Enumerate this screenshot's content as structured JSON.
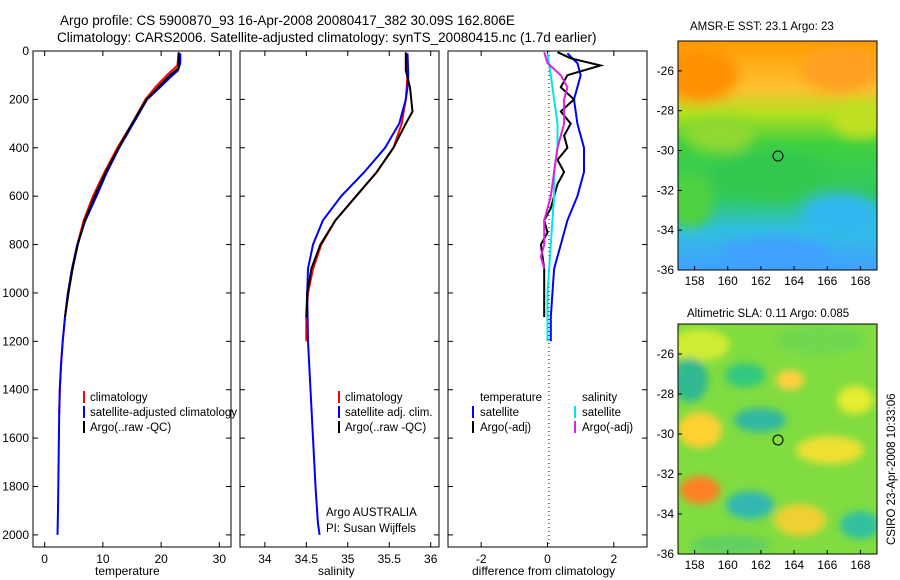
{
  "header": {
    "line1": "Argo profile: CS 5900870_93 16-Apr-2008 20080417_382 30.09S 162.806E",
    "line2": "Climatology: CARS2006. Satellite-adjusted climatology: synTS_20080415.nc (1.7d earlier)"
  },
  "footer_note": "CSIRO 23-Apr-2008 10:33:06",
  "chart_data": [
    {
      "type": "line",
      "xlabel": "temperature",
      "xlim": [
        -2,
        32
      ],
      "ylim": [
        0,
        2050
      ],
      "y_reversed": true,
      "xticks": [
        "0",
        "10",
        "20",
        "30"
      ],
      "yticks": [
        "0",
        "200",
        "400",
        "600",
        "800",
        "1000",
        "1200",
        "1400",
        "1600",
        "1800",
        "2000"
      ],
      "legend": [
        "climatology",
        "satellite-adjusted climatology",
        "Argo(..raw -QC)"
      ],
      "series": [
        {
          "name": "climatology",
          "color": "#ff0000",
          "x": [
            23.0,
            22.8,
            21.0,
            19.0,
            17.3,
            15.0,
            12.5,
            10.3,
            8.3,
            6.7,
            5.6,
            4.7,
            4.0,
            3.5,
            3.1,
            2.8,
            2.6,
            2.5
          ],
          "y": [
            10,
            60,
            100,
            150,
            200,
            300,
            400,
            500,
            600,
            700,
            800,
            900,
            1000,
            1100,
            1200,
            1300,
            1400,
            1500
          ]
        },
        {
          "name": "satellite-adjusted climatology",
          "color": "#0000ff",
          "x": [
            23.3,
            23.3,
            22.9,
            21.5,
            19.8,
            17.6,
            15.2,
            12.8,
            10.7,
            8.9,
            7.0,
            5.6,
            4.7,
            4.0,
            3.5,
            3.1,
            2.8,
            2.6,
            2.5,
            2.4,
            2.3,
            2.2
          ],
          "y": [
            10,
            50,
            80,
            110,
            150,
            200,
            300,
            400,
            500,
            600,
            700,
            800,
            900,
            1000,
            1100,
            1200,
            1300,
            1400,
            1500,
            1700,
            1900,
            2000
          ]
        },
        {
          "name": "Argo(..raw -QC)",
          "color": "#000000",
          "x": [
            23.0,
            23.0,
            21.5,
            19.5,
            17.5,
            15.0,
            12.7,
            10.5,
            8.6,
            6.9,
            5.7,
            4.8,
            4.1,
            3.5
          ],
          "y": [
            5,
            70,
            100,
            150,
            200,
            300,
            400,
            500,
            600,
            700,
            800,
            900,
            1000,
            1100
          ]
        }
      ]
    },
    {
      "type": "line",
      "xlabel": "salinity",
      "xlim": [
        33.7,
        36.1
      ],
      "ylim": [
        0,
        2050
      ],
      "y_reversed": true,
      "xticks": [
        "34",
        "34.5",
        "35",
        "35.5",
        "36"
      ],
      "legend": [
        "climatology",
        "satellite adj. clim.",
        "Argo(..raw -QC)"
      ],
      "annotation": [
        "Argo AUSTRALIA",
        "PI: Susan Wijffels"
      ],
      "series": [
        {
          "name": "climatology",
          "color": "#ff0000",
          "x": [
            35.7,
            35.72,
            35.7,
            35.65,
            35.55,
            35.35,
            35.1,
            34.85,
            34.68,
            34.58,
            34.52,
            34.5,
            34.5
          ],
          "y": [
            10,
            100,
            200,
            300,
            400,
            500,
            600,
            700,
            800,
            900,
            1000,
            1100,
            1200
          ]
        },
        {
          "name": "satellite adj. clim.",
          "color": "#0000ff",
          "x": [
            35.72,
            35.73,
            35.72,
            35.7,
            35.62,
            35.45,
            35.2,
            34.92,
            34.7,
            34.58,
            34.52,
            34.51,
            34.52,
            34.55,
            34.58,
            34.61,
            34.64,
            34.66
          ],
          "y": [
            10,
            100,
            150,
            200,
            300,
            400,
            500,
            600,
            700,
            800,
            900,
            1000,
            1200,
            1400,
            1600,
            1800,
            1950,
            2000
          ]
        },
        {
          "name": "Argo(..raw -QC)",
          "color": "#000000",
          "x": [
            35.7,
            35.7,
            35.75,
            35.78,
            35.7,
            35.55,
            35.35,
            35.1,
            34.85,
            34.67,
            34.56,
            34.51,
            34.5
          ],
          "y": [
            5,
            80,
            150,
            250,
            300,
            400,
            500,
            600,
            700,
            800,
            900,
            1000,
            1100
          ]
        }
      ]
    },
    {
      "type": "line",
      "xlabel": "difference from climatology",
      "xlim": [
        -3,
        3
      ],
      "ylim": [
        0,
        2050
      ],
      "y_reversed": true,
      "xticks": [
        "-2",
        "0",
        "2"
      ],
      "legend": [
        "temperature",
        "satellite",
        "Argo(-adj)",
        "salinity",
        "satellite",
        "Argo(-adj)"
      ],
      "series": [
        {
          "name": "temperature satellite",
          "color": "#0000ff",
          "x": [
            0.6,
            0.9,
            1.0,
            0.8,
            0.9,
            1.1,
            1.1,
            0.9,
            0.6,
            0.4,
            0.2,
            0.1,
            0.1
          ],
          "y": [
            10,
            50,
            100,
            200,
            300,
            400,
            500,
            600,
            700,
            800,
            900,
            1100,
            1200
          ]
        },
        {
          "name": "temperature Argo(-adj)",
          "color": "#000000",
          "x": [
            0.3,
            0.7,
            1.6,
            0.6,
            0.4,
            0.8,
            0.4,
            0.7,
            0.5,
            0.6,
            0.3,
            0.5,
            0.3,
            0.2,
            0.1,
            -0.1,
            0.0,
            -0.2,
            -0.1,
            -0.1,
            -0.1
          ],
          "y": [
            5,
            30,
            60,
            100,
            150,
            200,
            250,
            300,
            350,
            400,
            450,
            500,
            550,
            600,
            650,
            700,
            750,
            800,
            900,
            1000,
            1100
          ]
        },
        {
          "name": "salinity satellite",
          "color": "#00e5e5",
          "x": [
            0.0,
            0.1,
            0.2,
            0.3,
            0.3,
            0.2,
            0.2,
            0.1,
            0.0,
            0.0
          ],
          "y": [
            10,
            100,
            200,
            300,
            400,
            500,
            600,
            800,
            1000,
            1200
          ]
        },
        {
          "name": "salinity Argo(-adj)",
          "color": "#e020e0",
          "x": [
            -0.1,
            0.0,
            0.4,
            0.6,
            0.5,
            0.5,
            0.3,
            0.2,
            0.1,
            -0.1,
            -0.1,
            -0.2,
            -0.1
          ],
          "y": [
            5,
            50,
            100,
            150,
            200,
            300,
            400,
            500,
            600,
            700,
            800,
            850,
            900
          ]
        }
      ]
    },
    {
      "type": "heatmap",
      "title": "AMSR-E SST: 23.1  Argo: 23",
      "xlim": [
        157,
        169
      ],
      "ylim": [
        -36,
        -24.5
      ],
      "xticks": [
        "158",
        "160",
        "162",
        "164",
        "166",
        "168"
      ],
      "yticks": [
        "-26",
        "-28",
        "-30",
        "-32",
        "-34",
        "-36"
      ],
      "marker": {
        "lon": 162.8,
        "lat": -30.09
      }
    },
    {
      "type": "heatmap",
      "title": "Altimetric SLA: 0.11  Argo: 0.085",
      "xlim": [
        157,
        169
      ],
      "ylim": [
        -36,
        -24.5
      ],
      "xticks": [
        "158",
        "160",
        "162",
        "164",
        "166",
        "168"
      ],
      "yticks": [
        "-26",
        "-28",
        "-30",
        "-32",
        "-34",
        "-36"
      ],
      "marker": {
        "lon": 162.8,
        "lat": -30.09
      }
    }
  ]
}
